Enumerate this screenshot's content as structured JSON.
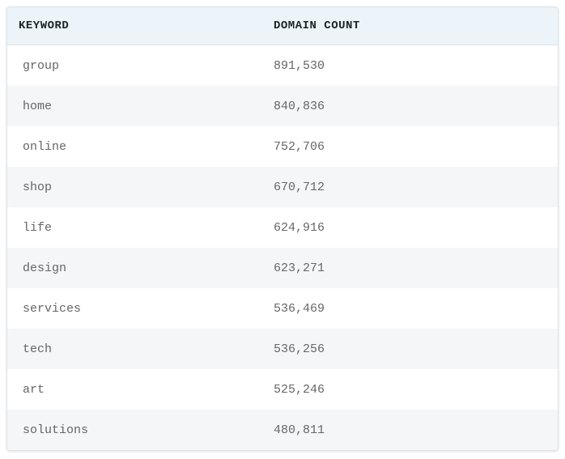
{
  "table": {
    "header": {
      "keyword": "KEYWORD",
      "count": "DOMAIN COUNT"
    },
    "rows": [
      {
        "keyword": "group",
        "count": "891,530"
      },
      {
        "keyword": "home",
        "count": "840,836"
      },
      {
        "keyword": "online",
        "count": "752,706"
      },
      {
        "keyword": "shop",
        "count": "670,712"
      },
      {
        "keyword": "life",
        "count": "624,916"
      },
      {
        "keyword": "design",
        "count": "623,271"
      },
      {
        "keyword": "services",
        "count": "536,469"
      },
      {
        "keyword": "tech",
        "count": "536,256"
      },
      {
        "keyword": "art",
        "count": "525,246"
      },
      {
        "keyword": "solutions",
        "count": "480,811"
      }
    ],
    "colors": {
      "header_bg": "#ecf4fa",
      "alt_row_bg": "#f5f6f8",
      "border": "#dde3e9",
      "header_text": "#1c232b",
      "cell_text": "#666666"
    }
  }
}
